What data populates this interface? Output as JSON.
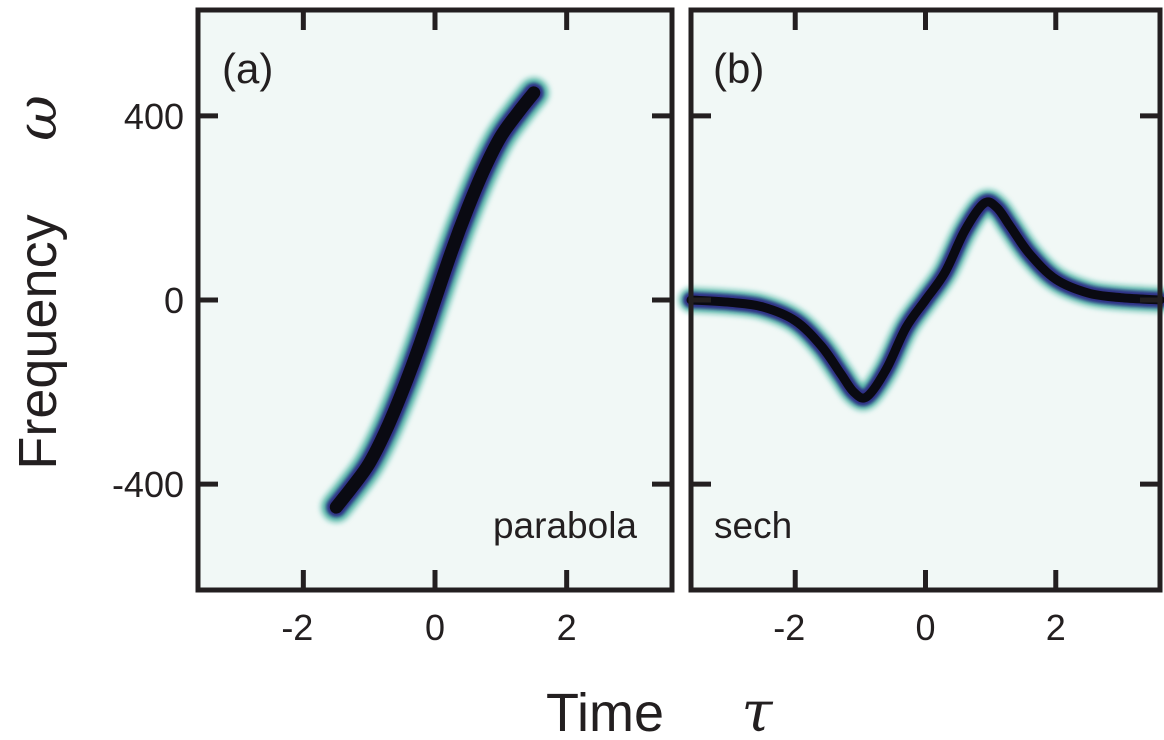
{
  "chart_data": [
    {
      "type": "line",
      "panel_label": "(a)",
      "annotation": "parabola",
      "xlim": [
        -3.6,
        3.6
      ],
      "ylim": [
        -630,
        630
      ],
      "x_ticks": [
        -2,
        0,
        2
      ],
      "y_ticks": [
        -400,
        0,
        400
      ],
      "x": [
        -1.5,
        -1.25,
        -1.0,
        -0.75,
        -0.5,
        -0.25,
        0.0,
        0.25,
        0.5,
        0.75,
        1.0,
        1.25,
        1.5
      ],
      "y": [
        -450,
        -405,
        -355,
        -285,
        -200,
        -105,
        0,
        105,
        200,
        285,
        355,
        405,
        450
      ],
      "colors": {
        "background": "#f1f8f6",
        "core": "#0a0a12",
        "mid": "#2e2f86",
        "outer": "#1b9e8a"
      }
    },
    {
      "type": "line",
      "panel_label": "(b)",
      "annotation": "sech",
      "xlim": [
        -3.6,
        3.6
      ],
      "ylim": [
        -630,
        630
      ],
      "x_ticks": [
        -2,
        0,
        2
      ],
      "y_ticks": [
        -400,
        0,
        400
      ],
      "x": [
        -3.6,
        -3.0,
        -2.5,
        -2.0,
        -1.6,
        -1.3,
        -1.1,
        -0.9,
        -0.6,
        -0.3,
        0.0,
        0.3,
        0.6,
        0.9,
        1.1,
        1.3,
        1.6,
        2.0,
        2.5,
        3.0,
        3.6
      ],
      "y": [
        0,
        -5,
        -15,
        -45,
        -100,
        -160,
        -200,
        -210,
        -150,
        -60,
        0,
        60,
        150,
        210,
        200,
        160,
        100,
        45,
        15,
        5,
        0
      ],
      "colors": {
        "background": "#f1f8f6",
        "core": "#0a0a12",
        "mid": "#2e2f86",
        "outer": "#1b9e8a"
      }
    }
  ],
  "ylabel": "Frequency",
  "ylabel_symbol": "ω",
  "xlabel": "Time",
  "xlabel_symbol": "τ"
}
